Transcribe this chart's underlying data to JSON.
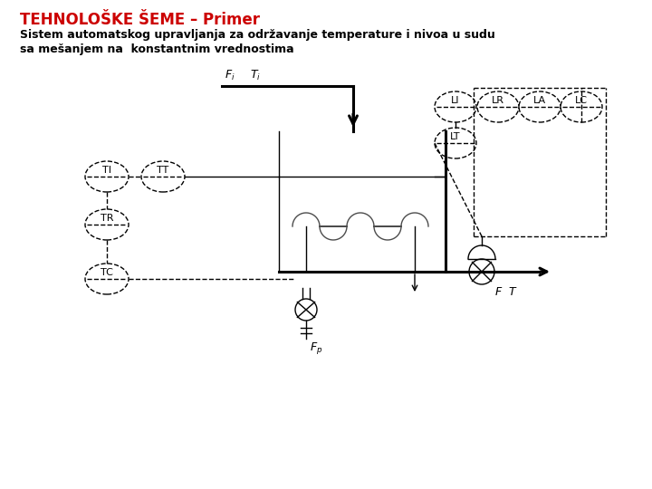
{
  "title": "TEHNOLOŠKE ŠEME – Primer",
  "subtitle1": "Sistem automatskog upravljanja za održavanje temperature i nivoa u sudu",
  "subtitle2": "sa mešanjem na  konstantnim vrednostima",
  "title_color": "#cc0000",
  "bg_color": "#ffffff",
  "instr_left": [
    "TI",
    "TT",
    "TR",
    "TC"
  ],
  "instr_right_top": [
    "LI",
    "LR",
    "LA",
    "LC"
  ],
  "instr_lt": "LT"
}
